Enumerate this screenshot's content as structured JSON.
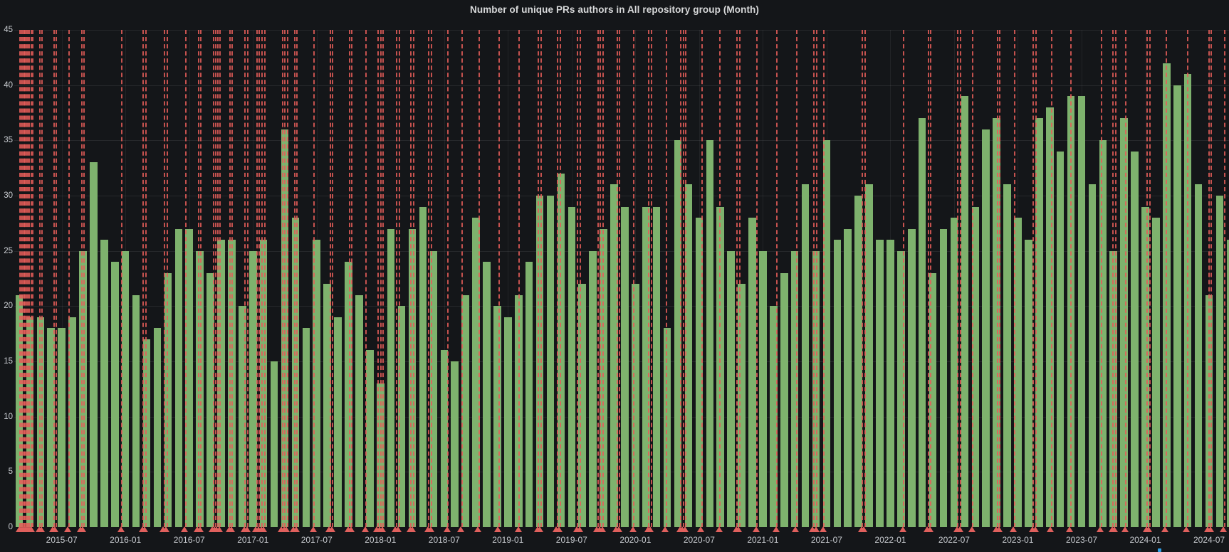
{
  "panel": {
    "title": "Number of unique PRs authors in All repository group (Month)"
  },
  "colors": {
    "background": "#141619",
    "bar": "#7eb26d",
    "annotation": "#e0605d",
    "grid": "rgba(255,255,255,0.08)",
    "axis_text": "#c9ccd1",
    "title_text": "#d8d9da",
    "logo_dot": "#2f9fe6"
  },
  "chart_data": {
    "type": "bar",
    "title": "Number of unique PRs authors in All repository group (Month)",
    "xlabel": "",
    "ylabel": "",
    "ylim": [
      0,
      45
    ],
    "grid": true,
    "legend_position": "none",
    "y_ticks": [
      0,
      5,
      10,
      15,
      20,
      25,
      30,
      35,
      40,
      45
    ],
    "categories": [
      "2015-03",
      "2015-04",
      "2015-05",
      "2015-06",
      "2015-07",
      "2015-08",
      "2015-09",
      "2015-10",
      "2015-11",
      "2015-12",
      "2016-01",
      "2016-02",
      "2016-03",
      "2016-04",
      "2016-05",
      "2016-06",
      "2016-07",
      "2016-08",
      "2016-09",
      "2016-10",
      "2016-11",
      "2016-12",
      "2017-01",
      "2017-02",
      "2017-03",
      "2017-04",
      "2017-05",
      "2017-06",
      "2017-07",
      "2017-08",
      "2017-09",
      "2017-10",
      "2017-11",
      "2017-12",
      "2018-01",
      "2018-02",
      "2018-03",
      "2018-04",
      "2018-05",
      "2018-06",
      "2018-07",
      "2018-08",
      "2018-09",
      "2018-10",
      "2018-11",
      "2018-12",
      "2019-01",
      "2019-02",
      "2019-03",
      "2019-04",
      "2019-05",
      "2019-06",
      "2019-07",
      "2019-08",
      "2019-09",
      "2019-10",
      "2019-11",
      "2019-12",
      "2020-01",
      "2020-02",
      "2020-03",
      "2020-04",
      "2020-05",
      "2020-06",
      "2020-07",
      "2020-08",
      "2020-09",
      "2020-10",
      "2020-11",
      "2020-12",
      "2021-01",
      "2021-02",
      "2021-03",
      "2021-04",
      "2021-05",
      "2021-06",
      "2021-07",
      "2021-08",
      "2021-09",
      "2021-10",
      "2021-11",
      "2021-12",
      "2022-01",
      "2022-02",
      "2022-03",
      "2022-04",
      "2022-05",
      "2022-06",
      "2022-07",
      "2022-08",
      "2022-09",
      "2022-10",
      "2022-11",
      "2022-12",
      "2023-01",
      "2023-02",
      "2023-03",
      "2023-04",
      "2023-05",
      "2023-06",
      "2023-07",
      "2023-08",
      "2023-09",
      "2023-10",
      "2023-11",
      "2023-12",
      "2024-01",
      "2024-02",
      "2024-03",
      "2024-04",
      "2024-05",
      "2024-06",
      "2024-07",
      "2024-08",
      "2024-09"
    ],
    "values": [
      21,
      19,
      19,
      18,
      18,
      19,
      25,
      33,
      26,
      24,
      25,
      21,
      17,
      18,
      23,
      27,
      27,
      25,
      23,
      26,
      26,
      20,
      25,
      26,
      15,
      36,
      28,
      18,
      26,
      22,
      19,
      24,
      21,
      16,
      13,
      27,
      20,
      27,
      29,
      25,
      16,
      15,
      21,
      28,
      24,
      20,
      19,
      21,
      24,
      30,
      30,
      32,
      29,
      22,
      25,
      27,
      31,
      29,
      22,
      29,
      29,
      18,
      35,
      31,
      28,
      35,
      29,
      25,
      22,
      28,
      25,
      20,
      23,
      25,
      31,
      25,
      35,
      26,
      27,
      30,
      31,
      26,
      26,
      25,
      27,
      37,
      23,
      27,
      28,
      39,
      29,
      36,
      37,
      31,
      28,
      26,
      37,
      38,
      34,
      39,
      39,
      31,
      35,
      25,
      37,
      34,
      29,
      28,
      42,
      40,
      41,
      31,
      21,
      30,
      26
    ],
    "x_ticks": [
      {
        "label": "2015-07",
        "index": 4
      },
      {
        "label": "2016-01",
        "index": 10
      },
      {
        "label": "2016-07",
        "index": 16
      },
      {
        "label": "2017-01",
        "index": 22
      },
      {
        "label": "2017-07",
        "index": 28
      },
      {
        "label": "2018-01",
        "index": 34
      },
      {
        "label": "2018-07",
        "index": 40
      },
      {
        "label": "2019-01",
        "index": 46
      },
      {
        "label": "2019-07",
        "index": 52
      },
      {
        "label": "2020-01",
        "index": 58
      },
      {
        "label": "2020-07",
        "index": 64
      },
      {
        "label": "2021-01",
        "index": 70
      },
      {
        "label": "2021-07",
        "index": 76
      },
      {
        "label": "2022-01",
        "index": 82
      },
      {
        "label": "2022-07",
        "index": 88
      },
      {
        "label": "2023-01",
        "index": 94
      },
      {
        "label": "2023-07",
        "index": 100
      },
      {
        "label": "2024-01",
        "index": 106
      },
      {
        "label": "2024-07",
        "index": 112
      }
    ],
    "annotations": {
      "style": "vertical-dashed-line-with-triangle-marker",
      "positions_month_index": [
        0.0,
        0.12,
        0.25,
        0.38,
        0.5,
        0.63,
        0.76,
        0.9,
        1.05,
        1.2,
        1.9,
        2.1,
        3.2,
        3.4,
        4.6,
        5.8,
        6.0,
        9.6,
        11.6,
        11.85,
        13.6,
        13.85,
        15.6,
        16.8,
        17.05,
        18.2,
        18.4,
        18.6,
        18.85,
        19.8,
        20.0,
        21.2,
        21.45,
        22.3,
        22.55,
        22.8,
        23.05,
        24.7,
        24.95,
        25.2,
        25.85,
        26.1,
        27.7,
        29.2,
        29.45,
        31.0,
        31.25,
        32.6,
        33.7,
        33.95,
        34.2,
        35.45,
        35.7,
        36.8,
        37.05,
        38.5,
        38.75,
        40.3,
        41.6,
        43.2,
        45.1,
        47.0,
        48.8,
        49.05,
        50.6,
        50.85,
        52.5,
        52.75,
        54.4,
        54.65,
        54.9,
        56.2,
        56.45,
        57.8,
        59.2,
        59.45,
        60.85,
        62.2,
        62.45,
        62.7,
        64.2,
        65.9,
        67.5,
        67.75,
        69.4,
        71.25,
        73.1,
        74.7,
        75.0,
        75.7,
        79.3,
        79.55,
        83.2,
        85.5,
        85.75,
        88.3,
        88.55,
        89.7,
        92.0,
        92.25,
        93.6,
        95.4,
        95.65,
        97.1,
        98.9,
        101.8,
        102.9,
        103.15,
        104.1,
        106.1,
        106.35,
        107.9,
        109.9,
        111.9,
        112.15,
        113.4
      ]
    }
  }
}
